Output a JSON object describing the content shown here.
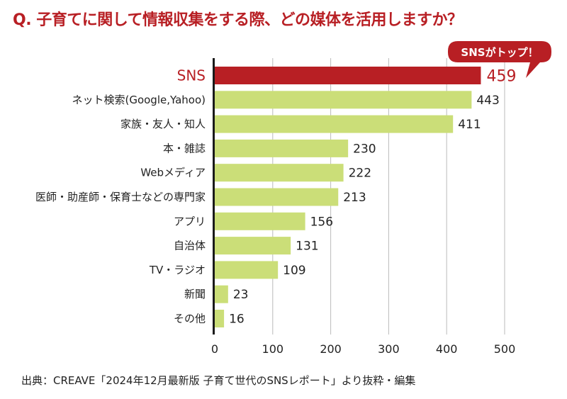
{
  "chart_data": {
    "type": "bar",
    "orientation": "horizontal",
    "title": "Q. 子育てに関して情報収集をする際、どの媒体を活用しますか？",
    "categories": [
      "SNS",
      "ネット検索(Google,Yahoo)",
      "家族・友人・知人",
      "本・雑誌",
      "Webメディア",
      "医師・助産師・保育士などの専門家",
      "アプリ",
      "自治体",
      "TV・ラジオ",
      "新聞",
      "その他"
    ],
    "values": [
      459,
      443,
      411,
      230,
      222,
      213,
      156,
      131,
      109,
      23,
      16
    ],
    "highlight_index": 0,
    "xlim": [
      0,
      500
    ],
    "xticks": [
      0,
      100,
      200,
      300,
      400,
      500
    ],
    "xlabel": "",
    "ylabel": "",
    "grid": "vertical",
    "annotation": "SNSがトップ！",
    "colors": {
      "highlight": "#b81f24",
      "bar": "#cbde78",
      "axis": "#1a1a1a",
      "grid": "#bbbbbb",
      "text": "#222222"
    }
  },
  "source": "出典：CREAVE「2024年12月最新版 子育て世代のSNSレポート」より抜粋・編集"
}
